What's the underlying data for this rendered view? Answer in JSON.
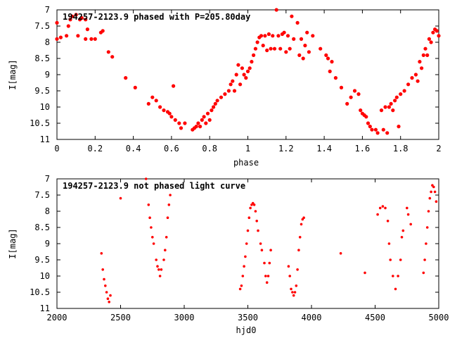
{
  "chart_data": [
    {
      "type": "scatter",
      "title": "194257-2123.9 phased with P=205.80day",
      "xlabel": "phase",
      "ylabel": "I[mag]",
      "xlim": [
        0,
        2
      ],
      "ylim": [
        7,
        11
      ],
      "y_inverted": true,
      "grid": false,
      "marker_color": "#ff0000",
      "xticks": [
        "0",
        "0.2",
        "0.4",
        "0.6",
        "0.8",
        "1",
        "1.2",
        "1.4",
        "1.6",
        "1.8",
        "2"
      ],
      "yticks": [
        "7",
        "7.5",
        "8",
        "8.5",
        "9",
        "9.5",
        "10",
        "10.5",
        "11"
      ],
      "points": [
        [
          0.0,
          7.4
        ],
        [
          0.0,
          7.9
        ],
        [
          0.02,
          7.85
        ],
        [
          0.05,
          7.8
        ],
        [
          0.06,
          7.5
        ],
        [
          0.07,
          7.3
        ],
        [
          0.08,
          7.2
        ],
        [
          0.1,
          7.15
        ],
        [
          0.11,
          7.8
        ],
        [
          0.12,
          7.3
        ],
        [
          0.13,
          7.25
        ],
        [
          0.15,
          7.9
        ],
        [
          0.15,
          7.3
        ],
        [
          0.16,
          7.6
        ],
        [
          0.18,
          7.9
        ],
        [
          0.2,
          7.9
        ],
        [
          0.23,
          7.7
        ],
        [
          0.24,
          7.65
        ],
        [
          0.27,
          8.3
        ],
        [
          0.29,
          8.45
        ],
        [
          0.36,
          9.1
        ],
        [
          0.41,
          9.4
        ],
        [
          0.48,
          9.9
        ],
        [
          0.5,
          9.7
        ],
        [
          0.52,
          9.8
        ],
        [
          0.54,
          10.0
        ],
        [
          0.56,
          10.1
        ],
        [
          0.58,
          10.15
        ],
        [
          0.59,
          10.2
        ],
        [
          0.6,
          10.3
        ],
        [
          0.61,
          9.35
        ],
        [
          0.62,
          10.4
        ],
        [
          0.64,
          10.5
        ],
        [
          0.65,
          10.65
        ],
        [
          0.67,
          10.5
        ],
        [
          0.71,
          10.7
        ],
        [
          0.72,
          10.65
        ],
        [
          0.73,
          10.6
        ],
        [
          0.74,
          10.5
        ],
        [
          0.75,
          10.6
        ],
        [
          0.76,
          10.4
        ],
        [
          0.77,
          10.3
        ],
        [
          0.78,
          10.5
        ],
        [
          0.79,
          10.2
        ],
        [
          0.8,
          10.4
        ],
        [
          0.81,
          10.1
        ],
        [
          0.82,
          10.0
        ],
        [
          0.83,
          9.9
        ],
        [
          0.84,
          9.8
        ],
        [
          0.86,
          9.7
        ],
        [
          0.88,
          9.6
        ],
        [
          0.9,
          9.5
        ],
        [
          0.91,
          9.3
        ],
        [
          0.92,
          9.2
        ],
        [
          0.93,
          9.5
        ],
        [
          0.94,
          9.0
        ],
        [
          0.95,
          8.7
        ],
        [
          0.96,
          9.3
        ],
        [
          0.97,
          8.8
        ],
        [
          0.98,
          9.0
        ],
        [
          0.99,
          9.1
        ],
        [
          1.0,
          8.9
        ],
        [
          1.01,
          8.8
        ],
        [
          1.02,
          8.6
        ],
        [
          1.03,
          8.4
        ],
        [
          1.04,
          8.2
        ],
        [
          1.05,
          8.0
        ],
        [
          1.06,
          7.85
        ],
        [
          1.07,
          7.8
        ],
        [
          1.08,
          8.1
        ],
        [
          1.09,
          7.8
        ],
        [
          1.1,
          8.25
        ],
        [
          1.11,
          7.75
        ],
        [
          1.12,
          8.2
        ],
        [
          1.13,
          7.8
        ],
        [
          1.14,
          8.2
        ],
        [
          1.15,
          7.0
        ],
        [
          1.16,
          7.8
        ],
        [
          1.17,
          8.2
        ],
        [
          1.18,
          7.75
        ],
        [
          1.19,
          7.7
        ],
        [
          1.2,
          8.3
        ],
        [
          1.21,
          7.8
        ],
        [
          1.22,
          8.2
        ],
        [
          1.23,
          7.2
        ],
        [
          1.24,
          7.9
        ],
        [
          1.26,
          7.4
        ],
        [
          1.27,
          8.4
        ],
        [
          1.28,
          7.9
        ],
        [
          1.29,
          8.5
        ],
        [
          1.3,
          8.1
        ],
        [
          1.31,
          7.7
        ],
        [
          1.32,
          8.3
        ],
        [
          1.34,
          7.8
        ],
        [
          1.38,
          8.2
        ],
        [
          1.41,
          8.4
        ],
        [
          1.42,
          8.5
        ],
        [
          1.43,
          8.9
        ],
        [
          1.44,
          8.6
        ],
        [
          1.46,
          9.1
        ],
        [
          1.49,
          9.4
        ],
        [
          1.52,
          9.9
        ],
        [
          1.54,
          9.7
        ],
        [
          1.56,
          9.5
        ],
        [
          1.58,
          9.6
        ],
        [
          1.59,
          10.1
        ],
        [
          1.6,
          10.2
        ],
        [
          1.61,
          10.25
        ],
        [
          1.62,
          10.3
        ],
        [
          1.63,
          10.5
        ],
        [
          1.64,
          10.6
        ],
        [
          1.65,
          10.7
        ],
        [
          1.67,
          10.7
        ],
        [
          1.68,
          10.8
        ],
        [
          1.7,
          10.1
        ],
        [
          1.71,
          10.7
        ],
        [
          1.72,
          10.0
        ],
        [
          1.73,
          10.8
        ],
        [
          1.74,
          10.0
        ],
        [
          1.75,
          9.9
        ],
        [
          1.76,
          10.1
        ],
        [
          1.77,
          9.8
        ],
        [
          1.78,
          9.7
        ],
        [
          1.79,
          10.6
        ],
        [
          1.8,
          9.6
        ],
        [
          1.82,
          9.5
        ],
        [
          1.84,
          9.3
        ],
        [
          1.86,
          9.1
        ],
        [
          1.88,
          9.0
        ],
        [
          1.89,
          9.2
        ],
        [
          1.9,
          8.6
        ],
        [
          1.91,
          8.8
        ],
        [
          1.92,
          8.4
        ],
        [
          1.93,
          8.2
        ],
        [
          1.94,
          8.4
        ],
        [
          1.95,
          7.9
        ],
        [
          1.96,
          8.0
        ],
        [
          1.97,
          7.7
        ],
        [
          1.98,
          7.6
        ],
        [
          1.99,
          7.65
        ],
        [
          2.0,
          7.8
        ]
      ]
    },
    {
      "type": "scatter",
      "title": "194257-2123.9 not phased light curve",
      "xlabel": "hjd0",
      "ylabel": "I[mag]",
      "xlim": [
        2000,
        5000
      ],
      "ylim": [
        7,
        11
      ],
      "y_inverted": true,
      "grid": false,
      "marker_color": "#ff0000",
      "xticks": [
        "2000",
        "2500",
        "3000",
        "3500",
        "4000",
        "4500",
        "5000"
      ],
      "yticks": [
        "7",
        "7.5",
        "8",
        "8.5",
        "9",
        "9.5",
        "10",
        "10.5",
        "11"
      ],
      "points": [
        [
          2350,
          9.3
        ],
        [
          2360,
          9.8
        ],
        [
          2370,
          10.1
        ],
        [
          2380,
          10.3
        ],
        [
          2390,
          10.5
        ],
        [
          2400,
          10.7
        ],
        [
          2410,
          10.8
        ],
        [
          2420,
          10.6
        ],
        [
          2500,
          7.6
        ],
        [
          2700,
          7.0
        ],
        [
          2720,
          7.8
        ],
        [
          2730,
          8.2
        ],
        [
          2740,
          8.5
        ],
        [
          2750,
          8.8
        ],
        [
          2760,
          9.0
        ],
        [
          2780,
          9.5
        ],
        [
          2790,
          9.7
        ],
        [
          2800,
          9.8
        ],
        [
          2810,
          10.0
        ],
        [
          2820,
          9.8
        ],
        [
          2840,
          9.5
        ],
        [
          2850,
          9.2
        ],
        [
          2860,
          8.8
        ],
        [
          2870,
          8.2
        ],
        [
          2880,
          7.8
        ],
        [
          2890,
          7.5
        ],
        [
          3440,
          10.4
        ],
        [
          3450,
          10.3
        ],
        [
          3460,
          10.0
        ],
        [
          3470,
          9.7
        ],
        [
          3480,
          9.4
        ],
        [
          3490,
          9.0
        ],
        [
          3500,
          8.6
        ],
        [
          3510,
          8.2
        ],
        [
          3520,
          7.9
        ],
        [
          3530,
          7.8
        ],
        [
          3540,
          7.75
        ],
        [
          3550,
          7.8
        ],
        [
          3560,
          8.0
        ],
        [
          3570,
          8.3
        ],
        [
          3580,
          8.6
        ],
        [
          3600,
          9.0
        ],
        [
          3610,
          9.2
        ],
        [
          3630,
          9.6
        ],
        [
          3640,
          10.0
        ],
        [
          3650,
          10.2
        ],
        [
          3660,
          10.0
        ],
        [
          3670,
          9.6
        ],
        [
          3680,
          9.2
        ],
        [
          3820,
          9.7
        ],
        [
          3830,
          10.0
        ],
        [
          3840,
          10.4
        ],
        [
          3850,
          10.5
        ],
        [
          3860,
          10.6
        ],
        [
          3870,
          10.5
        ],
        [
          3880,
          10.3
        ],
        [
          3890,
          9.8
        ],
        [
          3900,
          9.2
        ],
        [
          3910,
          8.8
        ],
        [
          3920,
          8.4
        ],
        [
          3930,
          8.25
        ],
        [
          3940,
          8.2
        ],
        [
          4230,
          9.3
        ],
        [
          4420,
          9.9
        ],
        [
          4520,
          8.1
        ],
        [
          4540,
          7.9
        ],
        [
          4560,
          7.85
        ],
        [
          4580,
          7.9
        ],
        [
          4600,
          8.3
        ],
        [
          4610,
          9.0
        ],
        [
          4620,
          9.5
        ],
        [
          4640,
          10.0
        ],
        [
          4660,
          10.4
        ],
        [
          4680,
          10.0
        ],
        [
          4700,
          9.5
        ],
        [
          4710,
          8.8
        ],
        [
          4720,
          8.6
        ],
        [
          4750,
          7.9
        ],
        [
          4760,
          8.1
        ],
        [
          4780,
          8.4
        ],
        [
          4880,
          9.9
        ],
        [
          4890,
          9.5
        ],
        [
          4900,
          9.0
        ],
        [
          4910,
          8.5
        ],
        [
          4920,
          8.0
        ],
        [
          4930,
          7.6
        ],
        [
          4940,
          7.4
        ],
        [
          4950,
          7.2
        ],
        [
          4960,
          7.25
        ],
        [
          4970,
          7.4
        ],
        [
          4980,
          7.7
        ]
      ]
    }
  ]
}
